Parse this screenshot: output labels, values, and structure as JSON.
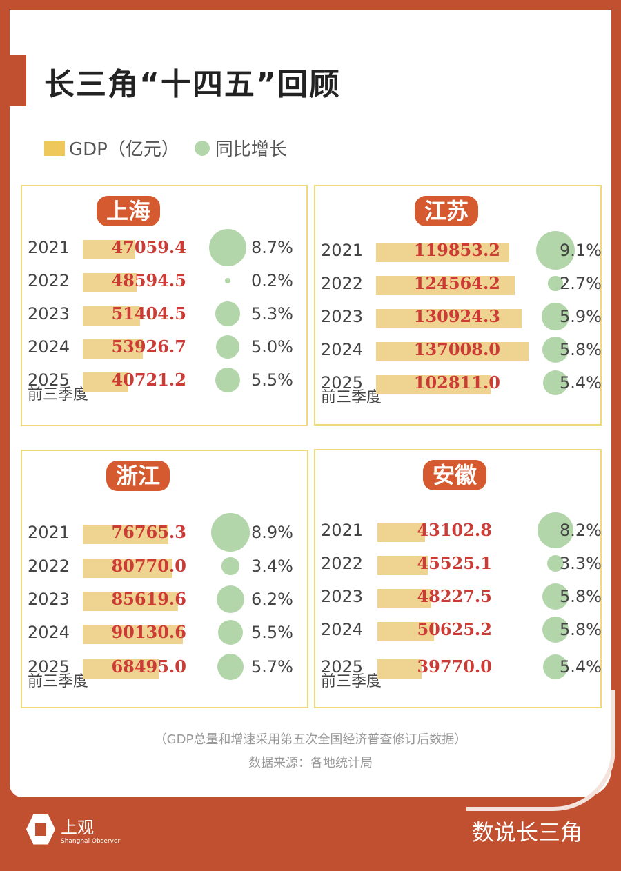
{
  "title": "长三角“十四五”回顾",
  "colors": {
    "bar": "#efd390",
    "bubble": "#b2d6aa",
    "value": "#cc3b35",
    "badge": "#d55a2f",
    "brand": "#c05030"
  },
  "chart_data": {
    "type": "bar",
    "legend": [
      {
        "name": "GDP（亿元）",
        "color": "#efc85c",
        "mark": "bar"
      },
      {
        "name": "同比增长",
        "color": "#b2d6aa",
        "mark": "bubble"
      }
    ],
    "categories": [
      "2021",
      "2022",
      "2023",
      "2024",
      "2025"
    ],
    "category_note": "前三季度",
    "panels": [
      {
        "region": "上海",
        "gdp": [
          47059.4,
          48594.5,
          51404.5,
          53926.7,
          40721.2
        ],
        "growth": [
          "8.7%",
          "0.2%",
          "5.3%",
          "5.0%",
          "5.5%"
        ]
      },
      {
        "region": "江苏",
        "gdp": [
          119853.2,
          124564.2,
          130924.3,
          137008.0,
          102811.0
        ],
        "growth": [
          "9.1%",
          "2.7%",
          "5.9%",
          "5.8%",
          "5.4%"
        ]
      },
      {
        "region": "浙江",
        "gdp": [
          76765.3,
          80770.0,
          85619.6,
          90130.6,
          68495.0
        ],
        "growth": [
          "8.9%",
          "3.4%",
          "6.2%",
          "5.5%",
          "5.7%"
        ]
      },
      {
        "region": "安徽",
        "gdp": [
          43102.8,
          45525.1,
          48227.5,
          50625.2,
          39770.0
        ],
        "growth": [
          "8.2%",
          "3.3%",
          "5.8%",
          "5.8%",
          "5.4%"
        ]
      }
    ]
  },
  "notes": {
    "method": "（GDP总量和增速采用第五次全国经济普查修订后数据）",
    "source": "数据来源：各地统计局"
  },
  "footer": {
    "logo_text": "上观",
    "logo_sub": "Shanghai Observer",
    "column": "数说长三角"
  }
}
